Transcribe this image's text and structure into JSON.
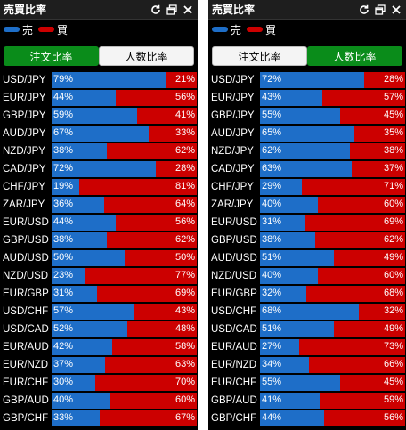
{
  "colors": {
    "sell": "#1e6ec8",
    "buy": "#cc0000",
    "active_tab": "#0a8c1a"
  },
  "panels": [
    {
      "title": "売買比率",
      "icons": [
        "refresh-icon",
        "window-icon",
        "close-icon"
      ],
      "legend": {
        "sell_label": "売",
        "buy_label": "買"
      },
      "tabs": [
        {
          "label": "注文比率",
          "active": true
        },
        {
          "label": "人数比率",
          "active": false
        }
      ],
      "rows": [
        {
          "pair": "USD/JPY",
          "sell": 79,
          "buy": 21,
          "sell_label": "79%",
          "buy_label": "21%"
        },
        {
          "pair": "EUR/JPY",
          "sell": 44,
          "buy": 56,
          "sell_label": "44%",
          "buy_label": "56%"
        },
        {
          "pair": "GBP/JPY",
          "sell": 59,
          "buy": 41,
          "sell_label": "59%",
          "buy_label": "41%"
        },
        {
          "pair": "AUD/JPY",
          "sell": 67,
          "buy": 33,
          "sell_label": "67%",
          "buy_label": "33%"
        },
        {
          "pair": "NZD/JPY",
          "sell": 38,
          "buy": 62,
          "sell_label": "38%",
          "buy_label": "62%"
        },
        {
          "pair": "CAD/JPY",
          "sell": 72,
          "buy": 28,
          "sell_label": "72%",
          "buy_label": "28%"
        },
        {
          "pair": "CHF/JPY",
          "sell": 19,
          "buy": 81,
          "sell_label": "19%",
          "buy_label": "81%"
        },
        {
          "pair": "ZAR/JPY",
          "sell": 36,
          "buy": 64,
          "sell_label": "36%",
          "buy_label": "64%"
        },
        {
          "pair": "EUR/USD",
          "sell": 44,
          "buy": 56,
          "sell_label": "44%",
          "buy_label": "56%"
        },
        {
          "pair": "GBP/USD",
          "sell": 38,
          "buy": 62,
          "sell_label": "38%",
          "buy_label": "62%"
        },
        {
          "pair": "AUD/USD",
          "sell": 50,
          "buy": 50,
          "sell_label": "50%",
          "buy_label": "50%"
        },
        {
          "pair": "NZD/USD",
          "sell": 23,
          "buy": 77,
          "sell_label": "23%",
          "buy_label": "77%"
        },
        {
          "pair": "EUR/GBP",
          "sell": 31,
          "buy": 69,
          "sell_label": "31%",
          "buy_label": "69%"
        },
        {
          "pair": "USD/CHF",
          "sell": 57,
          "buy": 43,
          "sell_label": "57%",
          "buy_label": "43%"
        },
        {
          "pair": "USD/CAD",
          "sell": 52,
          "buy": 48,
          "sell_label": "52%",
          "buy_label": "48%"
        },
        {
          "pair": "EUR/AUD",
          "sell": 42,
          "buy": 58,
          "sell_label": "42%",
          "buy_label": "58%"
        },
        {
          "pair": "EUR/NZD",
          "sell": 37,
          "buy": 63,
          "sell_label": "37%",
          "buy_label": "63%"
        },
        {
          "pair": "EUR/CHF",
          "sell": 30,
          "buy": 70,
          "sell_label": "30%",
          "buy_label": "70%"
        },
        {
          "pair": "GBP/AUD",
          "sell": 40,
          "buy": 60,
          "sell_label": "40%",
          "buy_label": "60%"
        },
        {
          "pair": "GBP/CHF",
          "sell": 33,
          "buy": 67,
          "sell_label": "33%",
          "buy_label": "67%"
        }
      ]
    },
    {
      "title": "売買比率",
      "icons": [
        "refresh-icon",
        "window-icon",
        "close-icon"
      ],
      "legend": {
        "sell_label": "売",
        "buy_label": "買"
      },
      "tabs": [
        {
          "label": "注文比率",
          "active": false
        },
        {
          "label": "人数比率",
          "active": true
        }
      ],
      "rows": [
        {
          "pair": "USD/JPY",
          "sell": 72,
          "buy": 28,
          "sell_label": "72%",
          "buy_label": "28%"
        },
        {
          "pair": "EUR/JPY",
          "sell": 43,
          "buy": 57,
          "sell_label": "43%",
          "buy_label": "57%"
        },
        {
          "pair": "GBP/JPY",
          "sell": 55,
          "buy": 45,
          "sell_label": "55%",
          "buy_label": "45%"
        },
        {
          "pair": "AUD/JPY",
          "sell": 65,
          "buy": 35,
          "sell_label": "65%",
          "buy_label": "35%"
        },
        {
          "pair": "NZD/JPY",
          "sell": 62,
          "buy": 38,
          "sell_label": "62%",
          "buy_label": "38%"
        },
        {
          "pair": "CAD/JPY",
          "sell": 63,
          "buy": 37,
          "sell_label": "63%",
          "buy_label": "37%"
        },
        {
          "pair": "CHF/JPY",
          "sell": 29,
          "buy": 71,
          "sell_label": "29%",
          "buy_label": "71%"
        },
        {
          "pair": "ZAR/JPY",
          "sell": 40,
          "buy": 60,
          "sell_label": "40%",
          "buy_label": "60%"
        },
        {
          "pair": "EUR/USD",
          "sell": 31,
          "buy": 69,
          "sell_label": "31%",
          "buy_label": "69%"
        },
        {
          "pair": "GBP/USD",
          "sell": 38,
          "buy": 62,
          "sell_label": "38%",
          "buy_label": "62%"
        },
        {
          "pair": "AUD/USD",
          "sell": 51,
          "buy": 49,
          "sell_label": "51%",
          "buy_label": "49%"
        },
        {
          "pair": "NZD/USD",
          "sell": 40,
          "buy": 60,
          "sell_label": "40%",
          "buy_label": "60%"
        },
        {
          "pair": "EUR/GBP",
          "sell": 32,
          "buy": 68,
          "sell_label": "32%",
          "buy_label": "68%"
        },
        {
          "pair": "USD/CHF",
          "sell": 68,
          "buy": 32,
          "sell_label": "68%",
          "buy_label": "32%"
        },
        {
          "pair": "USD/CAD",
          "sell": 51,
          "buy": 49,
          "sell_label": "51%",
          "buy_label": "49%"
        },
        {
          "pair": "EUR/AUD",
          "sell": 27,
          "buy": 73,
          "sell_label": "27%",
          "buy_label": "73%"
        },
        {
          "pair": "EUR/NZD",
          "sell": 34,
          "buy": 66,
          "sell_label": "34%",
          "buy_label": "66%"
        },
        {
          "pair": "EUR/CHF",
          "sell": 55,
          "buy": 45,
          "sell_label": "55%",
          "buy_label": "45%"
        },
        {
          "pair": "GBP/AUD",
          "sell": 41,
          "buy": 59,
          "sell_label": "41%",
          "buy_label": "59%"
        },
        {
          "pair": "GBP/CHF",
          "sell": 44,
          "buy": 56,
          "sell_label": "44%",
          "buy_label": "56%"
        }
      ]
    }
  ]
}
